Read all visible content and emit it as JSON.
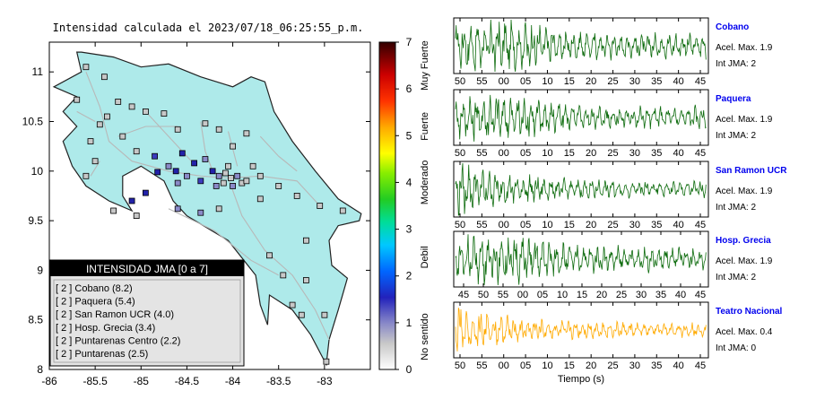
{
  "title": "Intensidad calculada el 2023/07/18_06:25:55_p.m.",
  "colors": {
    "land": "#aeeaea",
    "border": "#222222",
    "waveform_green": "#0d6b0d",
    "waveform_orange": "#ffaa00",
    "station_name": "#0000ee"
  },
  "chart_data": [
    {
      "type": "scatter",
      "title": "Intensidad calculada el 2023/07/18_06:25:55_p.m.",
      "xlim": [
        -86,
        -82.5
      ],
      "ylim": [
        8,
        11.3
      ],
      "x_ticks": [
        "-86",
        "-85.5",
        "-85",
        "-84.5",
        "-84",
        "-83.5",
        "-83"
      ],
      "y_ticks": [
        "8",
        "8.5",
        "9",
        "9.5",
        "10",
        "10.5",
        "11"
      ],
      "legend": {
        "title": "INTENSIDAD JMA [0 a 7]",
        "entries": [
          "[ 2 ]  Cobano (8.2)",
          "[ 2 ]  Paquera (5.4)",
          "[ 2 ]  San Ramon UCR (4.0)",
          "[ 2 ]  Hosp. Grecia (3.4)",
          "[ 2 ]  Puntarenas Centro (2.2)",
          "[ 2 ]  Puntarenas (2.5)"
        ]
      },
      "points": [
        {
          "x": -85.6,
          "y": 11.05,
          "v": 0.5
        },
        {
          "x": -85.4,
          "y": 10.95,
          "v": 0.5
        },
        {
          "x": -85.25,
          "y": 10.7,
          "v": 0.5
        },
        {
          "x": -85.7,
          "y": 10.72,
          "v": 0.5
        },
        {
          "x": -85.45,
          "y": 10.47,
          "v": 0.5
        },
        {
          "x": -85.55,
          "y": 10.3,
          "v": 0.5
        },
        {
          "x": -85.37,
          "y": 10.55,
          "v": 0.5
        },
        {
          "x": -85.1,
          "y": 10.65,
          "v": 0.5
        },
        {
          "x": -84.95,
          "y": 10.6,
          "v": 0.5
        },
        {
          "x": -84.75,
          "y": 10.58,
          "v": 0.5
        },
        {
          "x": -84.6,
          "y": 10.42,
          "v": 0.5
        },
        {
          "x": -84.3,
          "y": 10.48,
          "v": 0.5
        },
        {
          "x": -84.15,
          "y": 10.42,
          "v": 0.5
        },
        {
          "x": -83.85,
          "y": 10.38,
          "v": 0.5
        },
        {
          "x": -84.0,
          "y": 10.25,
          "v": 0.5
        },
        {
          "x": -85.2,
          "y": 10.35,
          "v": 0.5
        },
        {
          "x": -85.05,
          "y": 10.2,
          "v": 0.5
        },
        {
          "x": -85.5,
          "y": 10.1,
          "v": 0.5
        },
        {
          "x": -85.6,
          "y": 9.95,
          "v": 0.5
        },
        {
          "x": -84.85,
          "y": 10.15,
          "v": 1.5
        },
        {
          "x": -84.7,
          "y": 10.05,
          "v": 1
        },
        {
          "x": -84.55,
          "y": 10.18,
          "v": 2
        },
        {
          "x": -84.42,
          "y": 10.08,
          "v": 2
        },
        {
          "x": -84.3,
          "y": 10.12,
          "v": 1
        },
        {
          "x": -84.22,
          "y": 10.0,
          "v": 2
        },
        {
          "x": -84.15,
          "y": 9.95,
          "v": 1
        },
        {
          "x": -84.08,
          "y": 9.98,
          "v": 0.5
        },
        {
          "x": -84.02,
          "y": 9.93,
          "v": 0.5
        },
        {
          "x": -83.95,
          "y": 9.95,
          "v": 1
        },
        {
          "x": -83.9,
          "y": 9.88,
          "v": 0.5
        },
        {
          "x": -84.1,
          "y": 9.88,
          "v": 0.5
        },
        {
          "x": -84.18,
          "y": 9.85,
          "v": 1
        },
        {
          "x": -84.0,
          "y": 9.85,
          "v": 1
        },
        {
          "x": -83.85,
          "y": 9.9,
          "v": 0.5
        },
        {
          "x": -84.05,
          "y": 10.05,
          "v": 0.5
        },
        {
          "x": -83.78,
          "y": 10.05,
          "v": 0.5
        },
        {
          "x": -83.7,
          "y": 9.95,
          "v": 0.5
        },
        {
          "x": -84.35,
          "y": 9.9,
          "v": 1.5
        },
        {
          "x": -84.5,
          "y": 9.95,
          "v": 1
        },
        {
          "x": -84.6,
          "y": 9.88,
          "v": 1
        },
        {
          "x": -84.62,
          "y": 10.0,
          "v": 2
        },
        {
          "x": -84.82,
          "y": 9.99,
          "v": 2
        },
        {
          "x": -84.95,
          "y": 9.78,
          "v": 2
        },
        {
          "x": -85.1,
          "y": 9.7,
          "v": 2
        },
        {
          "x": -84.6,
          "y": 9.62,
          "v": 1
        },
        {
          "x": -84.35,
          "y": 9.58,
          "v": 1
        },
        {
          "x": -84.15,
          "y": 9.62,
          "v": 0.5
        },
        {
          "x": -83.7,
          "y": 9.72,
          "v": 0.5
        },
        {
          "x": -83.5,
          "y": 9.85,
          "v": 0.5
        },
        {
          "x": -83.3,
          "y": 9.75,
          "v": 0.5
        },
        {
          "x": -83.05,
          "y": 9.65,
          "v": 0.5
        },
        {
          "x": -82.8,
          "y": 9.6,
          "v": 0.5
        },
        {
          "x": -83.2,
          "y": 9.3,
          "v": 0.5
        },
        {
          "x": -83.6,
          "y": 9.15,
          "v": 0.5
        },
        {
          "x": -83.45,
          "y": 8.95,
          "v": 0.5
        },
        {
          "x": -83.2,
          "y": 8.9,
          "v": 0.5
        },
        {
          "x": -83.35,
          "y": 8.65,
          "v": 0.5
        },
        {
          "x": -83.0,
          "y": 8.55,
          "v": 0.5
        },
        {
          "x": -83.25,
          "y": 8.55,
          "v": 0.5
        },
        {
          "x": -82.98,
          "y": 8.08,
          "v": 0.5
        },
        {
          "x": -85.3,
          "y": 9.6,
          "v": 0.5
        },
        {
          "x": -85.05,
          "y": 9.55,
          "v": 0.5
        }
      ]
    },
    {
      "type": "bar",
      "title": "",
      "ylim": [
        0,
        7
      ],
      "y_ticks": [
        "0",
        "1",
        "2",
        "3",
        "4",
        "5",
        "6",
        "7"
      ],
      "labels": [
        "No sentido",
        "Debil",
        "Moderado",
        "Fuerte",
        "Muy Fuerte"
      ]
    },
    {
      "type": "line",
      "xlabel": "Tiempo (s)",
      "stations": [
        {
          "name": "Cobano",
          "acel": "Acel. Max. 1.9",
          "int": "Int JMA: 2",
          "color": "#0d6b0d",
          "amp": 0.45,
          "ticks": [
            "50",
            "55",
            "00",
            "05",
            "10",
            "15",
            "20",
            "25",
            "30",
            "35",
            "40",
            "45"
          ]
        },
        {
          "name": "Paquera",
          "acel": "Acel. Max. 1.9",
          "int": "Int JMA: 2",
          "color": "#0d6b0d",
          "amp": 0.4,
          "ticks": [
            "50",
            "55",
            "00",
            "05",
            "10",
            "15",
            "20",
            "25",
            "30",
            "35",
            "40",
            "45"
          ]
        },
        {
          "name": "San Ramon UCR",
          "acel": "Acel. Max. 1.9",
          "int": "Int JMA: 2",
          "color": "#0d6b0d",
          "amp": 0.48,
          "ticks": [
            "50",
            "55",
            "00",
            "05",
            "10",
            "15",
            "20",
            "25",
            "30",
            "35",
            "40",
            "45"
          ]
        },
        {
          "name": "Hosp. Grecia",
          "acel": "Acel. Max. 1.9",
          "int": "Int JMA: 2",
          "color": "#0d6b0d",
          "amp": 0.42,
          "ticks": [
            "45",
            "50",
            "55",
            "00",
            "05",
            "10",
            "15",
            "20",
            "25",
            "30",
            "35",
            "40",
            "45"
          ]
        },
        {
          "name": "Teatro Nacional",
          "acel": "Acel. Max. 0.4",
          "int": "Int JMA: 0",
          "color": "#ffaa00",
          "amp": 0.42,
          "ticks": [
            "50",
            "55",
            "00",
            "05",
            "10",
            "15",
            "20",
            "25",
            "30",
            "35",
            "40",
            "45"
          ]
        }
      ]
    }
  ]
}
